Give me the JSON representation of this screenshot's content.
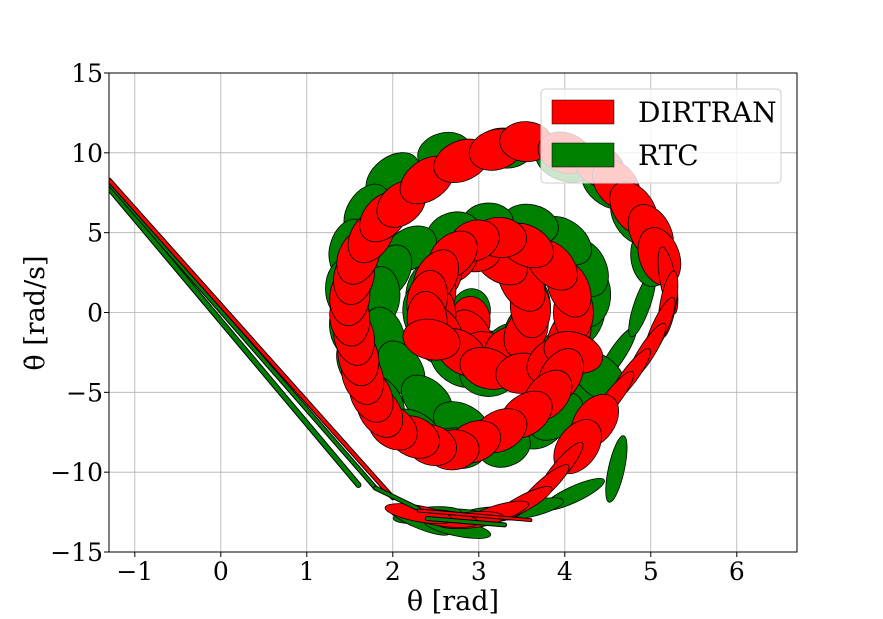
{
  "chart_data": {
    "type": "scatter",
    "title": "",
    "xlabel": "θ [rad]",
    "ylabel": "θ̇ [rad/s]",
    "xlim": [
      -1.3,
      6.7
    ],
    "ylim": [
      -15,
      15
    ],
    "xticks": [
      -1,
      0,
      1,
      2,
      3,
      4,
      5,
      6
    ],
    "xtick_labels": [
      "−1",
      "0",
      "1",
      "2",
      "3",
      "4",
      "5",
      "6"
    ],
    "yticks": [
      -15,
      -10,
      -5,
      0,
      5,
      10,
      15
    ],
    "ytick_labels": [
      "−15",
      "−10",
      "−5",
      "0",
      "5",
      "10",
      "15"
    ],
    "grid": true,
    "legend_position": "top-right",
    "series": [
      {
        "name": "RTC",
        "color": "#008000",
        "marker": "ellipse",
        "points": [
          [
            2.9,
            0.0
          ],
          [
            2.85,
            -1.2
          ],
          [
            2.9,
            -2.0
          ],
          [
            3.1,
            -2.4
          ],
          [
            3.35,
            -2.0
          ],
          [
            3.55,
            -1.0
          ],
          [
            3.6,
            0.5
          ],
          [
            3.5,
            2.0
          ],
          [
            3.2,
            3.5
          ],
          [
            2.85,
            4.0
          ],
          [
            2.55,
            3.0
          ],
          [
            2.4,
            1.5
          ],
          [
            2.35,
            0.0
          ],
          [
            2.45,
            -1.5
          ],
          [
            2.75,
            -3.2
          ],
          [
            3.1,
            -4.0
          ],
          [
            3.55,
            -3.5
          ],
          [
            3.95,
            -2.4
          ],
          [
            4.2,
            -0.5
          ],
          [
            4.3,
            1.0
          ],
          [
            4.25,
            2.8
          ],
          [
            4.0,
            4.5
          ],
          [
            3.6,
            5.5
          ],
          [
            3.1,
            5.6
          ],
          [
            2.7,
            5.0
          ],
          [
            2.2,
            4.0
          ],
          [
            1.95,
            2.5
          ],
          [
            1.85,
            1.0
          ],
          [
            1.9,
            -1.5
          ],
          [
            2.1,
            -3.5
          ],
          [
            2.4,
            -5.5
          ],
          [
            2.8,
            -7.0
          ],
          [
            3.2,
            -7.8
          ],
          [
            3.7,
            -7.2
          ],
          [
            4.2,
            -5.2
          ],
          [
            4.6,
            -2.7
          ],
          [
            4.9,
            0.5
          ],
          [
            5.0,
            3.5
          ],
          [
            4.8,
            6.0
          ],
          [
            4.5,
            8.0
          ],
          [
            4.0,
            9.5
          ],
          [
            3.3,
            10.3
          ],
          [
            2.6,
            10.0
          ],
          [
            2.0,
            8.5
          ],
          [
            1.7,
            6.3
          ],
          [
            1.5,
            4.0
          ],
          [
            1.45,
            1.5
          ],
          [
            1.5,
            -1.0
          ],
          [
            1.6,
            -3.2
          ],
          [
            1.85,
            -5.5
          ],
          [
            2.25,
            -7.5
          ],
          [
            2.75,
            -8.5
          ],
          [
            3.3,
            -8.4
          ],
          [
            3.9,
            -6.5
          ],
          [
            4.4,
            -4.0
          ],
          [
            4.6,
            -9.8
          ],
          [
            4.1,
            -11.4
          ],
          [
            3.6,
            -12.3
          ],
          [
            3.1,
            -12.7
          ],
          [
            2.7,
            -12.8
          ],
          [
            2.4,
            -12.7
          ],
          [
            2.3,
            -13.0
          ],
          [
            2.75,
            -13.5
          ]
        ]
      },
      {
        "name": "DIRTRAN",
        "color": "#ff0000",
        "marker": "ellipse",
        "points": [
          [
            2.9,
            -0.5
          ],
          [
            2.9,
            -1.5
          ],
          [
            3.1,
            -2.5
          ],
          [
            3.35,
            -2.2
          ],
          [
            3.55,
            -1.2
          ],
          [
            3.6,
            0.3
          ],
          [
            3.5,
            1.8
          ],
          [
            3.25,
            3.2
          ],
          [
            2.95,
            3.8
          ],
          [
            2.7,
            3.2
          ],
          [
            2.55,
            2.2
          ],
          [
            2.5,
            1.2
          ],
          [
            2.5,
            0.0
          ],
          [
            2.55,
            -1.2
          ],
          [
            2.8,
            -2.5
          ],
          [
            3.1,
            -3.5
          ],
          [
            3.5,
            -3.8
          ],
          [
            3.85,
            -3.0
          ],
          [
            4.05,
            -1.5
          ],
          [
            4.1,
            0.0
          ],
          [
            4.05,
            1.5
          ],
          [
            3.85,
            3.0
          ],
          [
            3.55,
            4.2
          ],
          [
            3.25,
            4.7
          ],
          [
            2.95,
            4.5
          ],
          [
            2.7,
            3.6
          ],
          [
            2.5,
            2.2
          ],
          [
            2.4,
            0.8
          ],
          [
            2.4,
            -0.5
          ],
          [
            2.45,
            -1.7
          ],
          [
            4.1,
            -2.5
          ],
          [
            3.95,
            -4.0
          ],
          [
            3.8,
            -5.2
          ],
          [
            3.55,
            -6.4
          ],
          [
            3.25,
            -7.4
          ],
          [
            2.95,
            -8.1
          ],
          [
            2.7,
            -8.6
          ],
          [
            2.45,
            -8.3
          ],
          [
            2.25,
            -7.8
          ],
          [
            2.0,
            -7.2
          ],
          [
            1.85,
            -6.2
          ],
          [
            1.75,
            -5.2
          ],
          [
            1.65,
            -4.0
          ],
          [
            1.6,
            -2.8
          ],
          [
            1.55,
            -1.5
          ],
          [
            1.5,
            -0.3
          ],
          [
            1.5,
            1.0
          ],
          [
            1.55,
            2.3
          ],
          [
            1.6,
            3.5
          ],
          [
            1.75,
            4.8
          ],
          [
            1.9,
            6.0
          ],
          [
            2.1,
            6.8
          ],
          [
            2.4,
            8.3
          ],
          [
            2.8,
            9.5
          ],
          [
            3.2,
            10.2
          ],
          [
            3.55,
            10.7
          ],
          [
            4.0,
            10.0
          ],
          [
            4.4,
            9.2
          ],
          [
            4.6,
            8.0
          ],
          [
            4.8,
            6.5
          ],
          [
            5.0,
            5.0
          ],
          [
            5.1,
            3.5
          ],
          [
            5.2,
            2.0
          ],
          [
            5.2,
            0.5
          ],
          [
            5.1,
            -1.0
          ],
          [
            4.95,
            -2.5
          ],
          [
            4.75,
            -4.0
          ],
          [
            4.55,
            -5.4
          ],
          [
            4.35,
            -6.8
          ],
          [
            4.15,
            -8.4
          ],
          [
            3.95,
            -9.8
          ],
          [
            3.75,
            -11.0
          ],
          [
            3.5,
            -12.0
          ],
          [
            3.2,
            -12.6
          ],
          [
            2.9,
            -13.0
          ],
          [
            2.6,
            -12.9
          ],
          [
            2.3,
            -12.6
          ]
        ]
      }
    ]
  },
  "legend": {
    "entries": [
      {
        "label": "DIRTRAN",
        "color": "#ff0000"
      },
      {
        "label": "RTC",
        "color": "#008000"
      }
    ]
  }
}
